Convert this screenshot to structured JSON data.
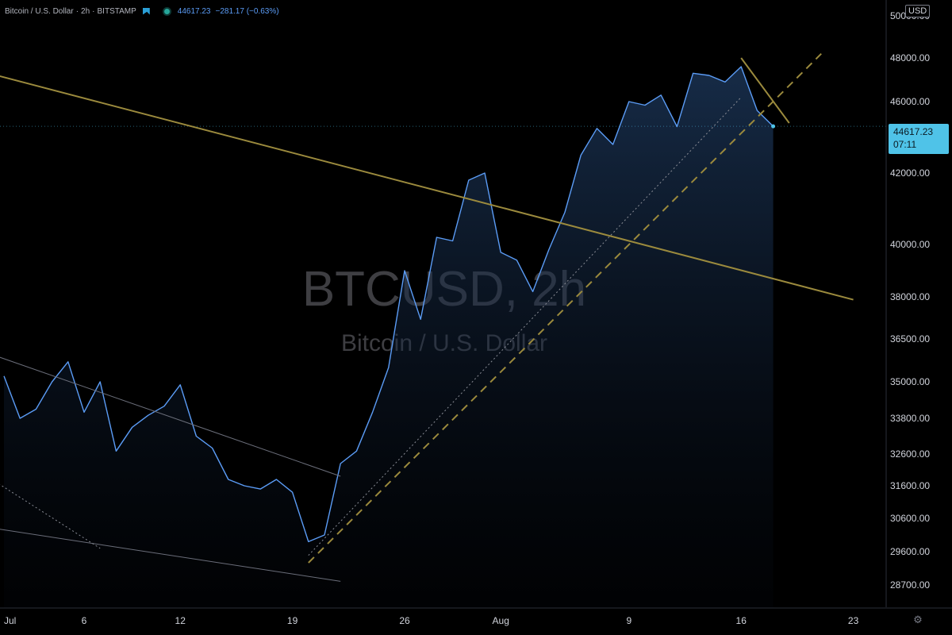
{
  "legend": {
    "symbol": "Bitcoin / U.S. Dollar",
    "interval": "2h",
    "exchange": "BITSTAMP",
    "last": "44617.23",
    "change": "−281.17 (−0.63%)"
  },
  "currency": "USD",
  "price_tag": {
    "price": "44617.23",
    "countdown": "07:11"
  },
  "watermark": {
    "line1": "BTCUSD, 2h",
    "line2": "Bitcoin / U.S. Dollar"
  },
  "colors": {
    "line": "#5b9cf6",
    "trend": "#9b8a3d",
    "channel": "#6b6e7a",
    "background": "#000000"
  },
  "icons": {
    "settings": "gear-icon",
    "flag": "flag-icon",
    "status": "status-dot-icon"
  },
  "chart_data": {
    "type": "area",
    "title": "Bitcoin / U.S. Dollar, 2h, BITSTAMP",
    "y_axis_ticks": [
      50000,
      48000,
      46000,
      42000,
      40000,
      38000,
      36500,
      35000,
      33800,
      32600,
      31600,
      30600,
      29600,
      28700
    ],
    "y_axis_labels": [
      "50000.00",
      "48000.00",
      "46000.00",
      "42000.00",
      "40000.00",
      "38000.00",
      "36500.00",
      "35000.00",
      "33800.00",
      "32600.00",
      "31600.00",
      "30600.00",
      "29600.00",
      "28700.00"
    ],
    "x_axis_labels": [
      "Jul",
      "6",
      "12",
      "19",
      "26",
      "Aug",
      "9",
      "16",
      "23"
    ],
    "x_axis_dates": [
      "2021-07-01",
      "2021-07-06",
      "2021-07-12",
      "2021-07-19",
      "2021-07-26",
      "2021-08-01",
      "2021-08-09",
      "2021-08-16",
      "2021-08-23"
    ],
    "x_range": [
      "2021-07-01",
      "2021-08-23"
    ],
    "grid": false,
    "series": [
      {
        "color": "#5b9cf6",
        "points": [
          [
            "2021-07-01",
            35200
          ],
          [
            "2021-07-02",
            33800
          ],
          [
            "2021-07-03",
            34100
          ],
          [
            "2021-07-04",
            35000
          ],
          [
            "2021-07-05",
            35700
          ],
          [
            "2021-07-06",
            34000
          ],
          [
            "2021-07-07",
            35000
          ],
          [
            "2021-07-08",
            32700
          ],
          [
            "2021-07-09",
            33500
          ],
          [
            "2021-07-10",
            33900
          ],
          [
            "2021-07-11",
            34200
          ],
          [
            "2021-07-12",
            34900
          ],
          [
            "2021-07-13",
            33200
          ],
          [
            "2021-07-14",
            32800
          ],
          [
            "2021-07-15",
            31800
          ],
          [
            "2021-07-16",
            31600
          ],
          [
            "2021-07-17",
            31500
          ],
          [
            "2021-07-18",
            31800
          ],
          [
            "2021-07-19",
            31400
          ],
          [
            "2021-07-20",
            29900
          ],
          [
            "2021-07-21",
            30100
          ],
          [
            "2021-07-22",
            32300
          ],
          [
            "2021-07-23",
            32700
          ],
          [
            "2021-07-24",
            34000
          ],
          [
            "2021-07-25",
            35500
          ],
          [
            "2021-07-26",
            39000
          ],
          [
            "2021-07-27",
            37200
          ],
          [
            "2021-07-28",
            40200
          ],
          [
            "2021-07-29",
            40100
          ],
          [
            "2021-07-30",
            41800
          ],
          [
            "2021-07-31",
            42000
          ],
          [
            "2021-08-01",
            39700
          ],
          [
            "2021-08-02",
            39400
          ],
          [
            "2021-08-03",
            38200
          ],
          [
            "2021-08-04",
            39800
          ],
          [
            "2021-08-05",
            40900
          ],
          [
            "2021-08-06",
            43000
          ],
          [
            "2021-08-07",
            44500
          ],
          [
            "2021-08-08",
            43600
          ],
          [
            "2021-08-09",
            46000
          ],
          [
            "2021-08-10",
            45800
          ],
          [
            "2021-08-11",
            46300
          ],
          [
            "2021-08-12",
            44600
          ],
          [
            "2021-08-13",
            47300
          ],
          [
            "2021-08-14",
            47200
          ],
          [
            "2021-08-15",
            46900
          ],
          [
            "2021-08-16",
            47600
          ],
          [
            "2021-08-17",
            45500
          ],
          [
            "2021-08-18",
            44617
          ]
        ]
      }
    ],
    "drawings": [
      {
        "kind": "trendline",
        "style": "solid",
        "points": [
          [
            "2021-06-29",
            47500
          ],
          [
            "2021-08-23",
            37900
          ]
        ]
      },
      {
        "kind": "trendline",
        "style": "dashed",
        "points": [
          [
            "2021-07-20",
            29300
          ],
          [
            "2021-08-21",
            48200
          ]
        ]
      },
      {
        "kind": "trendline",
        "style": "solid",
        "points": [
          [
            "2021-08-16",
            48000
          ],
          [
            "2021-08-19",
            44800
          ]
        ]
      },
      {
        "kind": "trendline",
        "style": "solid",
        "points": [
          [
            "2021-06-29",
            36200
          ],
          [
            "2021-07-22",
            31900
          ]
        ]
      },
      {
        "kind": "trendline",
        "style": "solid",
        "points": [
          [
            "2021-06-29",
            30400
          ],
          [
            "2021-07-22",
            28800
          ]
        ]
      },
      {
        "kind": "trendline",
        "style": "dotted",
        "points": [
          [
            "2021-06-29",
            32200
          ],
          [
            "2021-07-07",
            29700
          ]
        ]
      },
      {
        "kind": "trendline",
        "style": "dotted",
        "points": [
          [
            "2021-07-20",
            29500
          ],
          [
            "2021-08-16",
            46200
          ]
        ]
      }
    ]
  }
}
